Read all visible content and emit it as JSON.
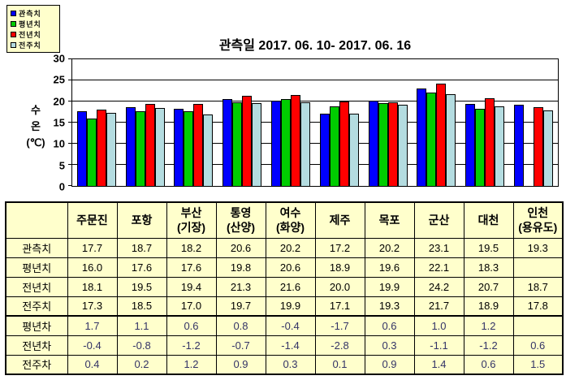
{
  "legend": {
    "items": [
      {
        "label": "관측치",
        "color": "#0000FF"
      },
      {
        "label": "평년치",
        "color": "#00CC00"
      },
      {
        "label": "전년치",
        "color": "#FF0000"
      },
      {
        "label": "전주치",
        "color": "#B4DCE0"
      }
    ]
  },
  "chart_data": {
    "type": "bar",
    "title": "관측일 2017. 06. 10- 2017. 06. 16",
    "ylabel_lines": [
      "수",
      "온",
      "(℃)"
    ],
    "ylabel": "수온(℃)",
    "ylim": [
      0,
      30
    ],
    "yticks": [
      0,
      5,
      10,
      15,
      20,
      25,
      30
    ],
    "grid": true,
    "legend_position": "top-left",
    "categories": [
      "주문진",
      "포항",
      "부산(기장)",
      "통영(산양)",
      "여수(화양)",
      "제주",
      "목포",
      "군산",
      "대천",
      "인천(용유도)"
    ],
    "series": [
      {
        "name": "관측치",
        "color": "#0000FF",
        "values": [
          17.7,
          18.7,
          18.2,
          20.6,
          20.2,
          17.2,
          20.2,
          23.1,
          19.5,
          19.3
        ]
      },
      {
        "name": "평년치",
        "color": "#00CC00",
        "values": [
          16.0,
          17.6,
          17.6,
          19.8,
          20.6,
          18.9,
          19.6,
          22.1,
          18.3,
          null
        ]
      },
      {
        "name": "전년치",
        "color": "#FF0000",
        "values": [
          18.1,
          19.5,
          19.4,
          21.3,
          21.6,
          20.0,
          19.9,
          24.2,
          20.7,
          18.7
        ]
      },
      {
        "name": "전주치",
        "color": "#B4DCE0",
        "values": [
          17.3,
          18.5,
          17.0,
          19.7,
          19.9,
          17.1,
          19.3,
          21.7,
          18.9,
          17.8
        ]
      }
    ]
  },
  "table": {
    "corner_label": "",
    "column_headers": [
      "주문진",
      "포항",
      "부산\n(기장)",
      "통영\n(산양)",
      "여수\n(화양)",
      "제주",
      "목포",
      "군산",
      "대천",
      "인천\n(용유도)"
    ],
    "rows": [
      {
        "label": "관측치",
        "type": "value",
        "values": [
          "17.7",
          "18.7",
          "18.2",
          "20.6",
          "20.2",
          "17.2",
          "20.2",
          "23.1",
          "19.5",
          "19.3"
        ]
      },
      {
        "label": "평년치",
        "type": "value",
        "values": [
          "16.0",
          "17.6",
          "17.6",
          "19.8",
          "20.6",
          "18.9",
          "19.6",
          "22.1",
          "18.3",
          ""
        ]
      },
      {
        "label": "전년치",
        "type": "value",
        "values": [
          "18.1",
          "19.5",
          "19.4",
          "21.3",
          "21.6",
          "20.0",
          "19.9",
          "24.2",
          "20.7",
          "18.7"
        ]
      },
      {
        "label": "전주치",
        "type": "value",
        "values": [
          "17.3",
          "18.5",
          "17.0",
          "19.7",
          "19.9",
          "17.1",
          "19.3",
          "21.7",
          "18.9",
          "17.8"
        ]
      },
      {
        "label": "평년차",
        "type": "diff",
        "values": [
          "1.7",
          "1.1",
          "0.6",
          "0.8",
          "-0.4",
          "-1.7",
          "0.6",
          "1.0",
          "1.2",
          ""
        ]
      },
      {
        "label": "전년차",
        "type": "diff",
        "values": [
          "-0.4",
          "-0.8",
          "-1.2",
          "-0.7",
          "-1.4",
          "-2.8",
          "0.3",
          "-1.1",
          "-1.2",
          "0.6"
        ]
      },
      {
        "label": "전주차",
        "type": "diff",
        "values": [
          "0.4",
          "0.2",
          "1.2",
          "0.9",
          "0.3",
          "0.1",
          "0.9",
          "1.4",
          "0.6",
          "1.5"
        ]
      }
    ]
  },
  "colors": {
    "table_background": "#FFFFCC",
    "diff_value_text": "#333366",
    "plot_background": "#FFFFFF"
  }
}
